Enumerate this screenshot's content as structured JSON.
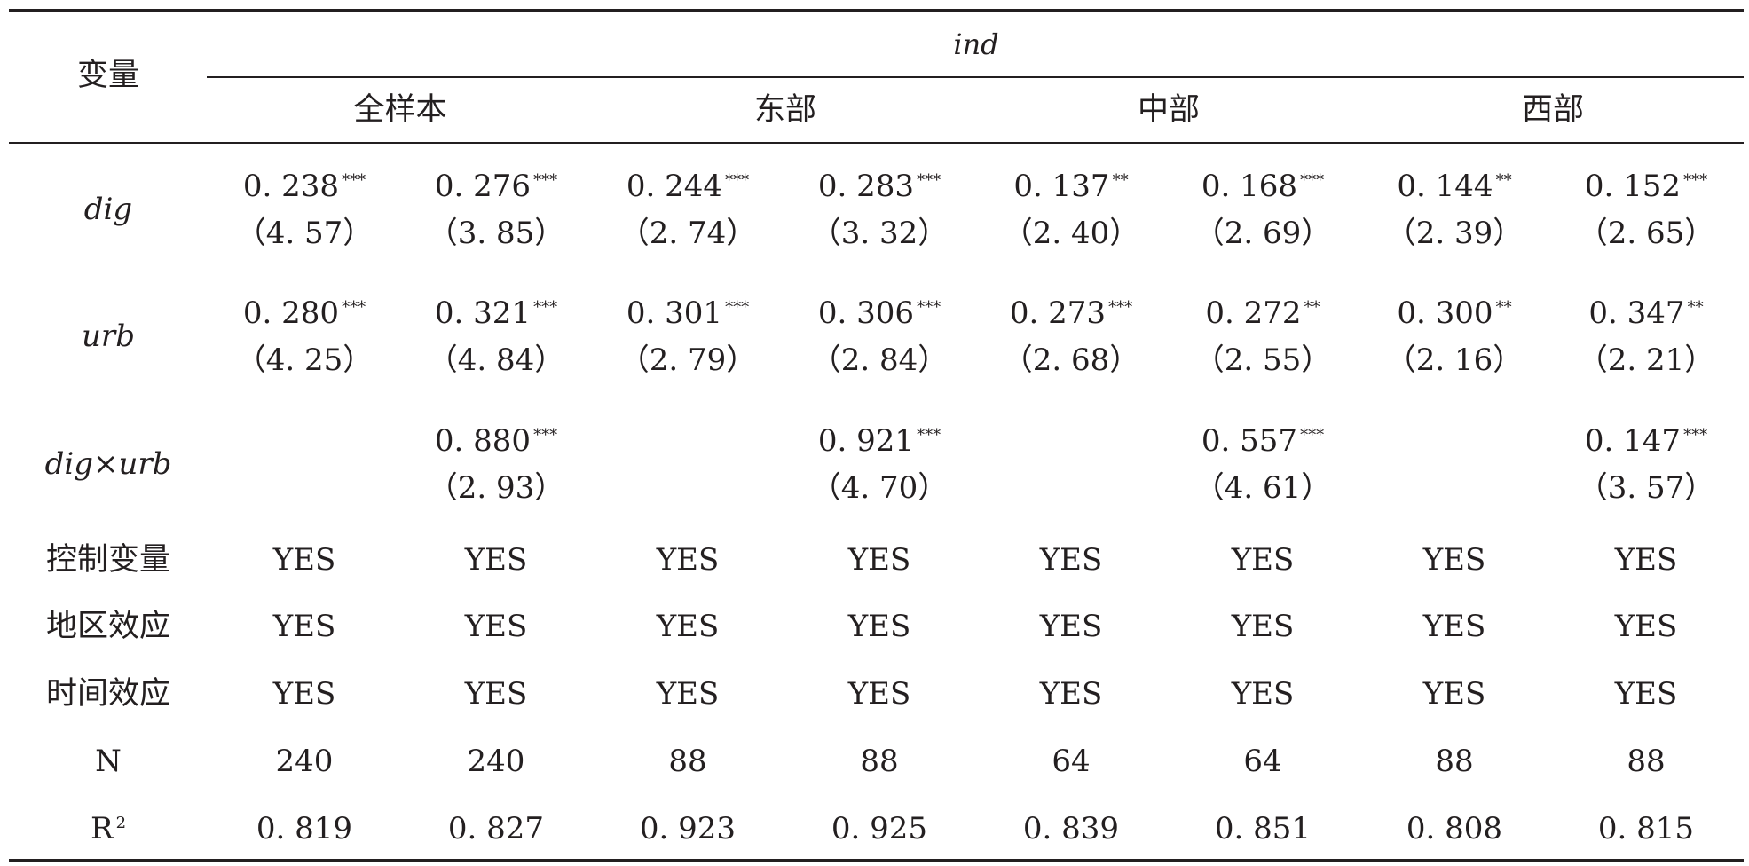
{
  "table": {
    "header": {
      "var_label": "变量",
      "dependent": "ind",
      "groups": [
        "全样本",
        "东部",
        "中部",
        "西部"
      ]
    },
    "coef_rows": [
      {
        "label": "dig",
        "coefs": [
          "0. 238",
          "0. 276",
          "0. 244",
          "0. 283",
          "0. 137",
          "0. 168",
          "0. 144",
          "0. 152"
        ],
        "stars": [
          "***",
          "***",
          "***",
          "***",
          "**",
          "***",
          "**",
          "***"
        ],
        "tstats": [
          "（4. 57）",
          "（3. 85）",
          "（2. 74）",
          "（3. 32）",
          "（2. 40）",
          "（2. 69）",
          "（2. 39）",
          "（2. 65）"
        ]
      },
      {
        "label": "urb",
        "coefs": [
          "0. 280",
          "0. 321",
          "0. 301",
          "0. 306",
          "0. 273",
          "0. 272",
          "0. 300",
          "0. 347"
        ],
        "stars": [
          "***",
          "***",
          "***",
          "***",
          "***",
          "**",
          "**",
          "**"
        ],
        "tstats": [
          "（4. 25）",
          "（4. 84）",
          "（2. 79）",
          "（2. 84）",
          "（2. 68）",
          "（2. 55）",
          "（2. 16）",
          "（2. 21）"
        ]
      },
      {
        "label": "dig×urb",
        "coefs": [
          "",
          "0. 880",
          "",
          "0. 921",
          "",
          "0. 557",
          "",
          "0. 147"
        ],
        "stars": [
          "",
          "***",
          "",
          "***",
          "",
          "***",
          "",
          "***"
        ],
        "tstats": [
          "",
          "（2. 93）",
          "",
          "（4. 70）",
          "",
          "（4. 61）",
          "",
          "（3. 57）"
        ]
      }
    ],
    "control_rows": [
      {
        "label": "控制变量",
        "values": [
          "YES",
          "YES",
          "YES",
          "YES",
          "YES",
          "YES",
          "YES",
          "YES"
        ]
      },
      {
        "label": "地区效应",
        "values": [
          "YES",
          "YES",
          "YES",
          "YES",
          "YES",
          "YES",
          "YES",
          "YES"
        ]
      },
      {
        "label": "时间效应",
        "values": [
          "YES",
          "YES",
          "YES",
          "YES",
          "YES",
          "YES",
          "YES",
          "YES"
        ]
      },
      {
        "label": "N",
        "values": [
          "240",
          "240",
          "88",
          "88",
          "64",
          "64",
          "88",
          "88"
        ]
      }
    ],
    "r2_row": {
      "label": "R",
      "label_sup": "2",
      "values": [
        "0. 819",
        "0. 827",
        "0. 923",
        "0. 925",
        "0. 839",
        "0. 851",
        "0. 808",
        "0. 815"
      ]
    }
  }
}
